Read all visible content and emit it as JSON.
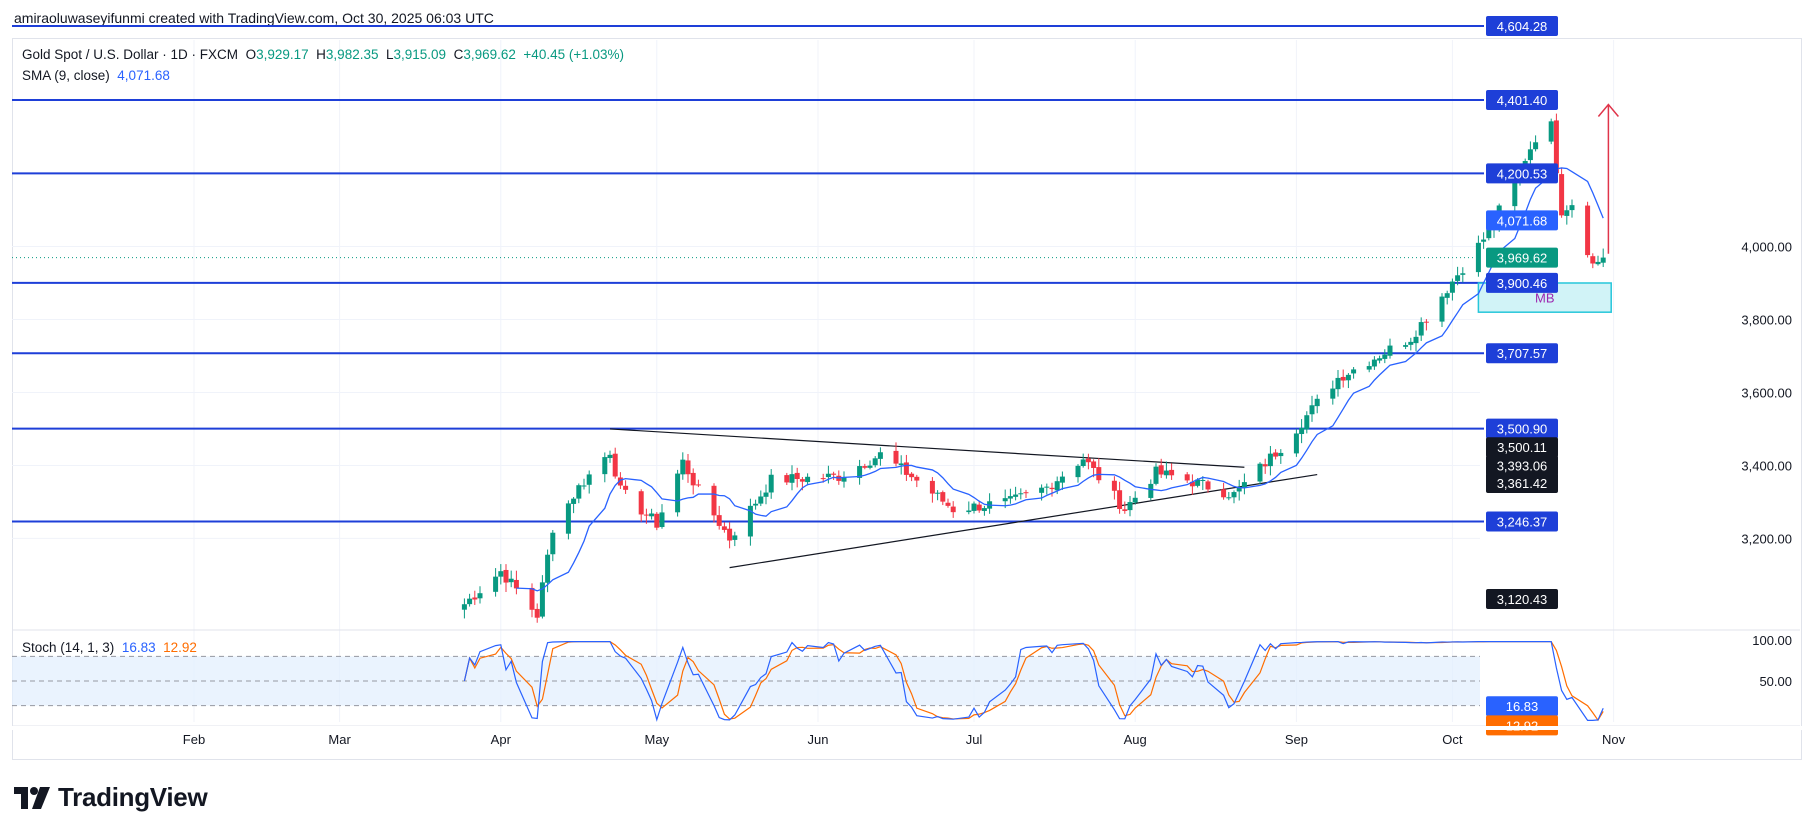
{
  "header": {
    "credit": "amiraoluwaseyifunmi created with TradingView.com, Oct 30, 2025 06:03 UTC"
  },
  "legend": {
    "symbol": "Gold Spot / U.S. Dollar · 1D · FXCM",
    "o_label": "O",
    "open": "3,929.17",
    "h_label": "H",
    "high": "3,982.35",
    "l_label": "L",
    "low": "3,915.09",
    "c_label": "C",
    "close": "3,969.62",
    "change": "+40.45 (+1.03%)",
    "sma_label": "SMA (9, close)",
    "sma_value": "4,071.68"
  },
  "stoch_legend": {
    "label": "Stoch (14, 1, 3)",
    "k": "16.83",
    "d": "12.92"
  },
  "brand": {
    "name": "TradingView"
  },
  "colors": {
    "up": "#089981",
    "down": "#f23645",
    "level_line": "#1e3fd8",
    "sma": "#2962ff",
    "stoch_k": "#2962ff",
    "stoch_d": "#ff6d00",
    "arrow": "#e0344a",
    "mb_box": "#26c6da"
  },
  "chart_data": {
    "type": "candlestick",
    "title": "Gold Spot / U.S. Dollar · 1D · FXCM",
    "x_ticks": [
      "Feb",
      "Mar",
      "Apr",
      "May",
      "Jun",
      "Jul",
      "Aug",
      "Sep",
      "Oct",
      "Nov"
    ],
    "y_ticks": [
      "4,000.00",
      "3,800.00",
      "3,600.00",
      "3,400.00",
      "3,200.00"
    ],
    "ylim": [
      3120,
      4650
    ],
    "date_range": [
      "2025-03-25",
      "2025-10-30"
    ],
    "horizontal_levels": [
      4604.28,
      4401.4,
      4200.53,
      3900.46,
      3707.57,
      3500.9,
      3246.37
    ],
    "price_badges": [
      {
        "label": "4,604.28",
        "kind": "level"
      },
      {
        "label": "4,401.40",
        "kind": "level"
      },
      {
        "label": "4,200.53",
        "kind": "level"
      },
      {
        "label": "4,071.68",
        "kind": "sma"
      },
      {
        "label": "3,969.62",
        "kind": "last"
      },
      {
        "label": "3,900.46",
        "kind": "level"
      },
      {
        "label": "3,707.57",
        "kind": "level"
      },
      {
        "label": "3,500.90",
        "kind": "level"
      },
      {
        "label": "3,500.11",
        "kind": "dark"
      },
      {
        "label": "3,393.06",
        "kind": "dark"
      },
      {
        "label": "3,361.42",
        "kind": "dark"
      },
      {
        "label": "3,246.37",
        "kind": "level"
      },
      {
        "label": "3,120.43",
        "kind": "dark"
      }
    ],
    "last_price": 3969.62,
    "triangle": {
      "upper": [
        [
          "2025-04-22",
          3500
        ],
        [
          "2025-08-22",
          3395
        ]
      ],
      "lower": [
        [
          "2025-05-15",
          3120
        ],
        [
          "2025-09-05",
          3375
        ]
      ]
    },
    "mb_zone": {
      "label": "MB",
      "from": "2025-10-06",
      "to": "2025-10-30",
      "high": 3900,
      "low": 3820
    },
    "arrow": {
      "date": "2025-10-31",
      "from": 3980,
      "to": 4400
    },
    "candle_anchors": [
      [
        "2025-03-25",
        3020
      ],
      [
        "2025-04-01",
        3110
      ],
      [
        "2025-04-04",
        3060
      ],
      [
        "2025-04-08",
        2990
      ],
      [
        "2025-04-11",
        3230
      ],
      [
        "2025-04-16",
        3340
      ],
      [
        "2025-04-22",
        3440
      ],
      [
        "2025-04-24",
        3330
      ],
      [
        "2025-05-01",
        3240
      ],
      [
        "2025-05-06",
        3410
      ],
      [
        "2025-05-09",
        3330
      ],
      [
        "2025-05-15",
        3200
      ],
      [
        "2025-05-23",
        3360
      ],
      [
        "2025-06-05",
        3370
      ],
      [
        "2025-06-13",
        3430
      ],
      [
        "2025-06-19",
        3370
      ],
      [
        "2025-06-27",
        3280
      ],
      [
        "2025-07-08",
        3300
      ],
      [
        "2025-07-15",
        3340
      ],
      [
        "2025-07-22",
        3420
      ],
      [
        "2025-07-30",
        3280
      ],
      [
        "2025-08-05",
        3380
      ],
      [
        "2025-08-11",
        3360
      ],
      [
        "2025-08-20",
        3320
      ],
      [
        "2025-08-29",
        3450
      ],
      [
        "2025-09-09",
        3640
      ],
      [
        "2025-09-23",
        3750
      ],
      [
        "2025-10-08",
        4040
      ],
      [
        "2025-10-17",
        4300
      ],
      [
        "2025-10-20",
        4330
      ],
      [
        "2025-10-22",
        4100
      ],
      [
        "2025-10-24",
        4120
      ],
      [
        "2025-10-28",
        3950
      ],
      [
        "2025-10-30",
        3969.62
      ]
    ],
    "stoch": {
      "ylim": [
        0,
        100
      ],
      "y_ticks": [
        "100.00",
        "50.00"
      ],
      "bands": [
        80,
        50,
        20
      ],
      "k_last": 16.83,
      "d_last": 12.92
    }
  }
}
